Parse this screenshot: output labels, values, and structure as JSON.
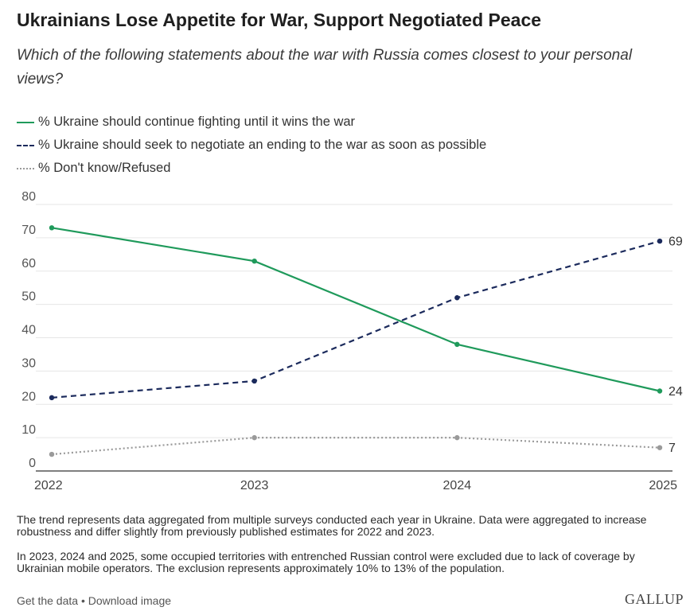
{
  "header": {
    "title": "Ukrainians Lose Appetite for War, Support Negotiated Peace",
    "subtitle": "Which of the following statements about the war with Russia comes closest to your personal views?"
  },
  "chart_data": {
    "type": "line",
    "x": [
      2022,
      2023,
      2024,
      2025
    ],
    "x_tick_labels": [
      "2022",
      "2023",
      "2024",
      "2025"
    ],
    "ylim": [
      0,
      80
    ],
    "y_ticks": [
      0,
      10,
      20,
      30,
      40,
      50,
      60,
      70,
      80
    ],
    "grid": true,
    "legend_position": "top-left",
    "series": [
      {
        "name": "% Ukraine should continue fighting until it wins the war",
        "values": [
          73,
          63,
          38,
          24
        ],
        "color": "#1f9a5b",
        "style": "solid",
        "end_label": "24"
      },
      {
        "name": "% Ukraine should seek to negotiate an ending to the war as soon as possible",
        "values": [
          22,
          27,
          52,
          69
        ],
        "color": "#1b2a5c",
        "style": "dashed",
        "end_label": "69"
      },
      {
        "name": "% Don't know/Refused",
        "values": [
          5,
          10,
          10,
          7
        ],
        "color": "#9a9a9a",
        "style": "dotted",
        "end_label": "7"
      }
    ]
  },
  "notes": {
    "note1": "The trend represents data aggregated from multiple surveys conducted each year in Ukraine. Data were aggregated to increase robustness and differ slightly from previously published estimates for 2022 and 2023.",
    "note2": "In 2023, 2024 and 2025, some occupied territories with entrenched Russian control were excluded due to lack of coverage by Ukrainian mobile operators. The exclusion represents approximately 10% to 13% of the population."
  },
  "footer": {
    "get_data": "Get the data",
    "separator": "•",
    "download": "Download image",
    "logo": "GALLUP"
  }
}
